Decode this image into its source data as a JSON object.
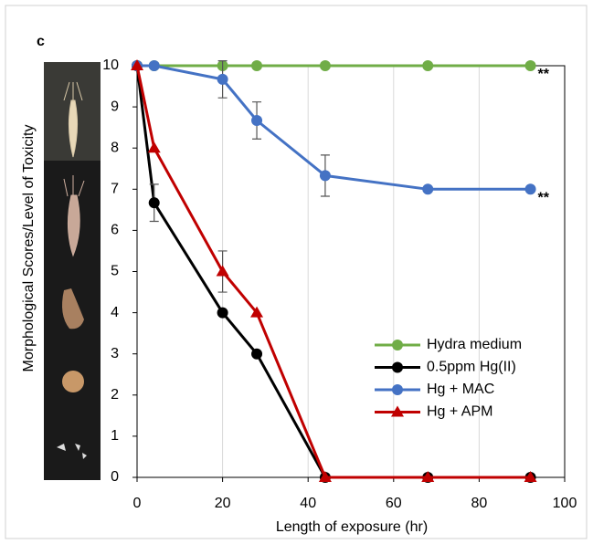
{
  "chart_data": {
    "type": "line",
    "label": "c",
    "xlabel": "Length of exposure (hr)",
    "ylabel": "Morphological Scores/Level of Toxicity",
    "x": [
      0,
      4,
      20,
      28,
      44,
      68,
      92
    ],
    "xlim": [
      0,
      100
    ],
    "xticks": [
      0,
      20,
      40,
      60,
      80,
      100
    ],
    "ylim": [
      0,
      10
    ],
    "yticks": [
      0,
      1,
      2,
      3,
      4,
      5,
      6,
      7,
      8,
      9,
      10
    ],
    "grid": "x",
    "legend": "lower right",
    "series": [
      {
        "name": "Hydra medium",
        "color": "#70ad47",
        "marker": "circle",
        "values": [
          10,
          10,
          10,
          10,
          10,
          10,
          10
        ],
        "errors": [
          null,
          null,
          null,
          null,
          null,
          null,
          null
        ],
        "annotation": "**"
      },
      {
        "name": "0.5ppm Hg(II)",
        "color": "#000000",
        "marker": "circle",
        "values": [
          10,
          6.67,
          4,
          3,
          0,
          0,
          0
        ],
        "errors": [
          null,
          0.45,
          null,
          null,
          null,
          null,
          null
        ]
      },
      {
        "name": "Hg + MAC",
        "color": "#4472c4",
        "marker": "circle",
        "values": [
          10,
          10,
          9.67,
          8.67,
          7.33,
          7,
          7
        ],
        "errors": [
          null,
          null,
          0.45,
          0.45,
          0.5,
          null,
          null
        ],
        "annotation": "**"
      },
      {
        "name": "Hg + APM",
        "color": "#c00000",
        "marker": "triangle",
        "values": [
          10,
          8,
          5,
          4,
          0,
          0,
          0
        ],
        "errors": [
          null,
          null,
          0.5,
          null,
          null,
          null,
          null
        ]
      }
    ]
  }
}
